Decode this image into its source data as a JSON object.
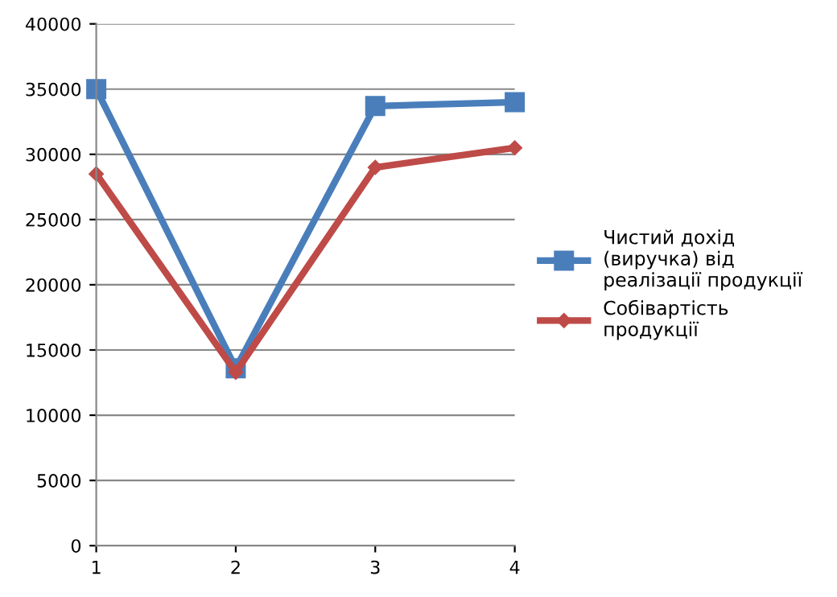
{
  "chart_data": {
    "type": "line",
    "x": [
      1,
      2,
      3,
      4
    ],
    "xlim": [
      1,
      4
    ],
    "xticks": [
      1,
      2,
      3,
      4
    ],
    "ylim": [
      0,
      40000
    ],
    "yticks": [
      0,
      5000,
      10000,
      15000,
      20000,
      25000,
      30000,
      35000,
      40000
    ],
    "grid": "y",
    "legend": "right",
    "series": [
      {
        "name": "Чистий дохід\n(виручка) від\nреалізації продукції",
        "color": "#4a7ebb",
        "marker": "square",
        "values": [
          35000,
          13600,
          33700,
          34000
        ]
      },
      {
        "name": "Собівартість\nпродукції",
        "color": "#be4b48",
        "marker": "diamond",
        "values": [
          28500,
          13300,
          29000,
          30500
        ]
      }
    ]
  }
}
